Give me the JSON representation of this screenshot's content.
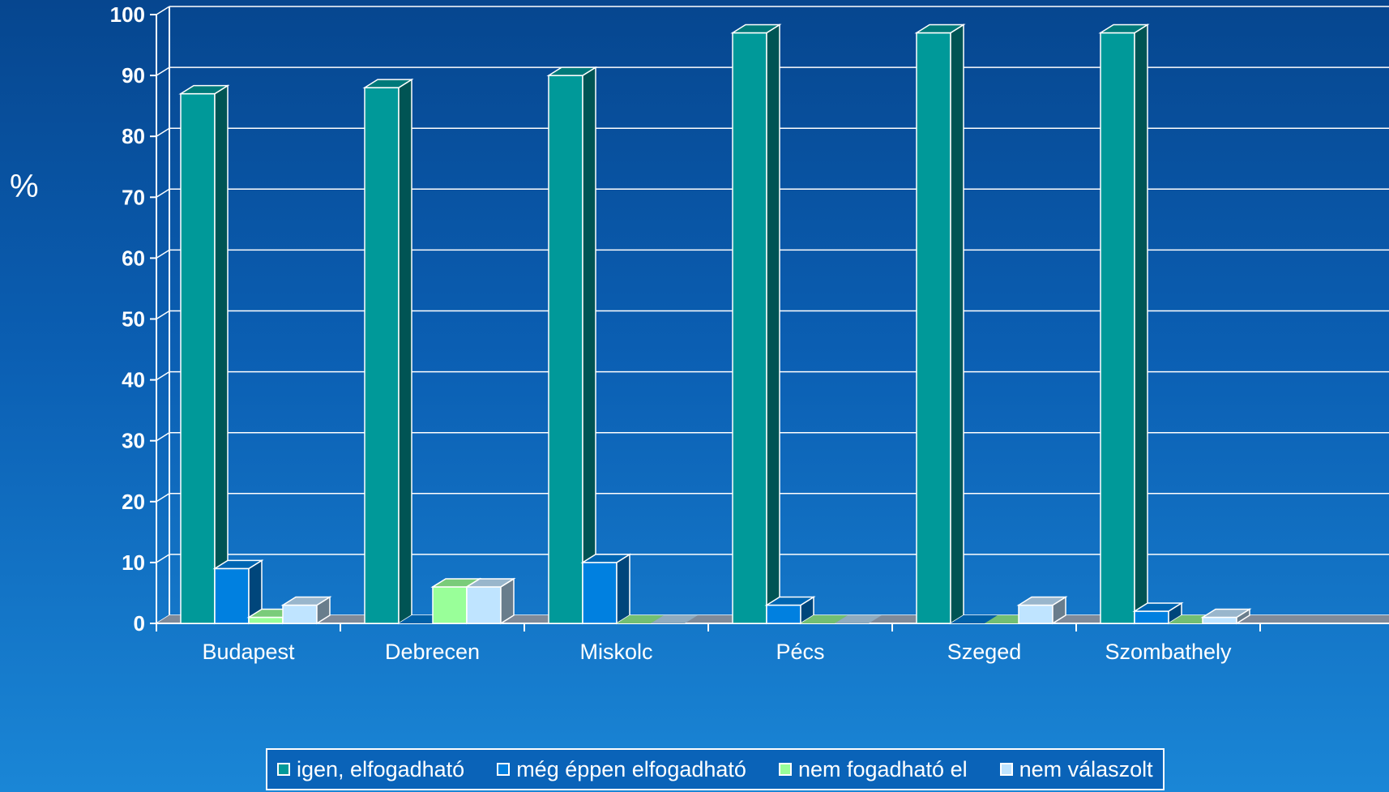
{
  "chart_data": {
    "type": "bar",
    "ylabel": "%",
    "ylim": [
      0,
      100
    ],
    "yticks": [
      0,
      10,
      20,
      30,
      40,
      50,
      60,
      70,
      80,
      90,
      100
    ],
    "categories": [
      "Budapest",
      "Debrecen",
      "Miskolc",
      "Pécs",
      "Szeged",
      "Szombathely"
    ],
    "series": [
      {
        "name": "igen, elfogadható",
        "color": "#009999",
        "values": [
          87,
          88,
          90,
          97,
          97,
          97
        ]
      },
      {
        "name": "még éppen elfogadható",
        "color": "#0080e0",
        "values": [
          9,
          0,
          10,
          3,
          0,
          2
        ]
      },
      {
        "name": "nem fogadható el",
        "color": "#99ff99",
        "values": [
          1,
          6,
          0,
          0,
          0,
          0
        ]
      },
      {
        "name": "nem válaszolt",
        "color": "#bfe4ff",
        "values": [
          3,
          6,
          0,
          0,
          3,
          1
        ]
      }
    ],
    "grid": true,
    "legend_position": "bottom",
    "style": "3d-clustered"
  }
}
